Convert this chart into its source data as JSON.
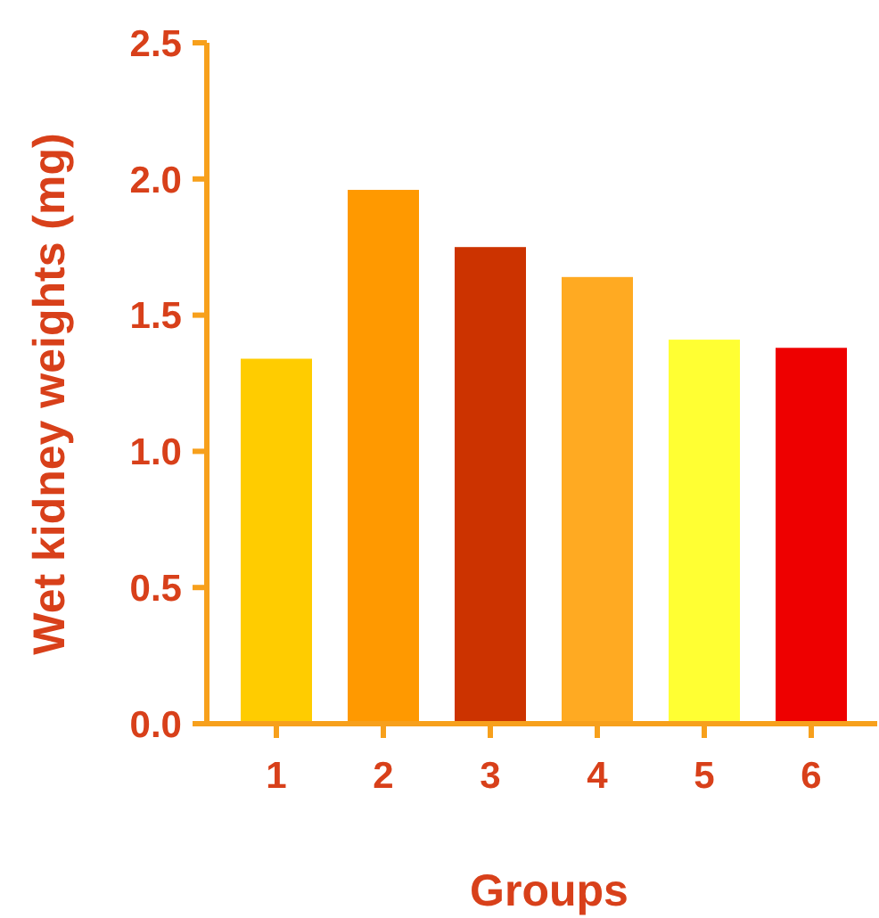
{
  "chart_data": {
    "type": "bar",
    "xlabel": "Groups",
    "ylabel": "Wet kidney weights (mg)",
    "categories": [
      "1",
      "2",
      "3",
      "4",
      "5",
      "6"
    ],
    "values": [
      1.34,
      1.96,
      1.75,
      1.64,
      1.41,
      1.38
    ],
    "colors": [
      "#ffcc00",
      "#ff9900",
      "#cc3300",
      "#ffaa22",
      "#ffff33",
      "#ee0000"
    ],
    "ylim": [
      0,
      2.5
    ],
    "yticks": [
      {
        "value": 0,
        "label": "0.0"
      },
      {
        "value": 0.5,
        "label": "0.5"
      },
      {
        "value": 1,
        "label": "1.0"
      },
      {
        "value": 1.5,
        "label": "1.5"
      },
      {
        "value": 2,
        "label": "2.0"
      },
      {
        "value": 2.5,
        "label": "2.5"
      }
    ]
  }
}
